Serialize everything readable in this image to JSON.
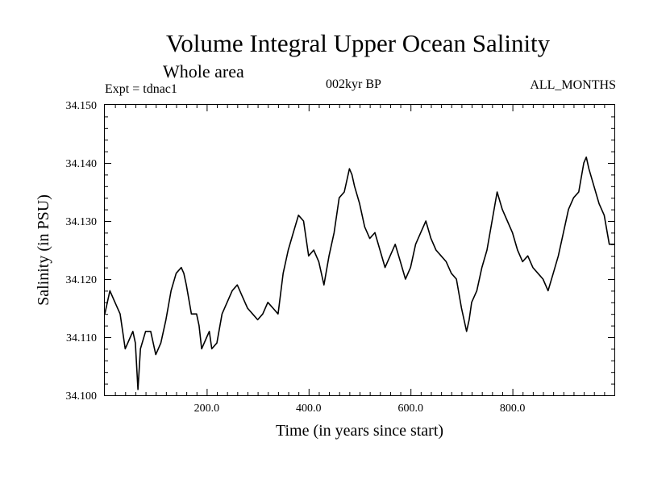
{
  "header": {
    "title": "Volume Integral Upper Ocean Salinity",
    "subtitle": "Whole area",
    "experiment": "Expt = tdnac1",
    "period": "002kyr BP",
    "months": "ALL_MONTHS"
  },
  "chart_data": {
    "type": "line",
    "title": "Volume Integral Upper Ocean Salinity",
    "subtitle": "Whole area",
    "xlabel": "Time (in years since start)",
    "ylabel": "Salinity (in PSU)",
    "xlim": [
      0,
      1000
    ],
    "ylim": [
      34.1,
      34.15
    ],
    "x_ticks": [
      200,
      400,
      600,
      800
    ],
    "x_tick_labels": [
      "200.0",
      "400.0",
      "600.0",
      "800.0"
    ],
    "y_ticks": [
      34.1,
      34.11,
      34.12,
      34.13,
      34.14,
      34.15
    ],
    "y_tick_labels": [
      "34.100",
      "34.110",
      "34.120",
      "34.130",
      "34.140",
      "34.150"
    ],
    "grid": false,
    "series": [
      {
        "name": "Salinity",
        "x": [
          0,
          10,
          20,
          30,
          40,
          50,
          55,
          60,
          65,
          70,
          80,
          90,
          100,
          110,
          120,
          130,
          140,
          150,
          155,
          160,
          170,
          180,
          185,
          190,
          200,
          205,
          210,
          220,
          230,
          240,
          250,
          260,
          270,
          280,
          290,
          300,
          310,
          320,
          330,
          340,
          350,
          360,
          370,
          380,
          390,
          400,
          410,
          420,
          430,
          440,
          450,
          460,
          470,
          480,
          485,
          490,
          500,
          510,
          520,
          530,
          540,
          550,
          560,
          570,
          580,
          590,
          600,
          610,
          620,
          630,
          640,
          650,
          660,
          670,
          680,
          690,
          700,
          710,
          715,
          720,
          730,
          740,
          750,
          760,
          770,
          780,
          790,
          800,
          810,
          820,
          830,
          840,
          850,
          860,
          870,
          880,
          890,
          900,
          910,
          920,
          930,
          940,
          945,
          950,
          960,
          970,
          980,
          990,
          1000
        ],
        "values": [
          34.114,
          34.118,
          34.116,
          34.114,
          34.108,
          34.11,
          34.111,
          34.109,
          34.101,
          34.108,
          34.111,
          34.111,
          34.107,
          34.109,
          34.113,
          34.118,
          34.121,
          34.122,
          34.121,
          34.119,
          34.114,
          34.114,
          34.112,
          34.108,
          34.11,
          34.111,
          34.108,
          34.109,
          34.114,
          34.116,
          34.118,
          34.119,
          34.117,
          34.115,
          34.114,
          34.113,
          34.114,
          34.116,
          34.115,
          34.114,
          34.121,
          34.125,
          34.128,
          34.131,
          34.13,
          34.124,
          34.125,
          34.123,
          34.119,
          34.124,
          34.128,
          34.134,
          34.135,
          34.139,
          34.138,
          34.136,
          34.133,
          34.129,
          34.127,
          34.128,
          34.125,
          34.122,
          34.124,
          34.126,
          34.123,
          34.12,
          34.122,
          34.126,
          34.128,
          34.13,
          34.127,
          34.125,
          34.124,
          34.123,
          34.121,
          34.12,
          34.115,
          34.111,
          34.113,
          34.116,
          34.118,
          34.122,
          34.125,
          34.13,
          34.135,
          34.132,
          34.13,
          34.128,
          34.125,
          34.123,
          34.124,
          34.122,
          34.121,
          34.12,
          34.118,
          34.121,
          34.124,
          34.128,
          34.132,
          34.134,
          34.135,
          34.14,
          34.141,
          34.139,
          34.136,
          34.133,
          34.131,
          34.126,
          34.126
        ]
      }
    ]
  }
}
